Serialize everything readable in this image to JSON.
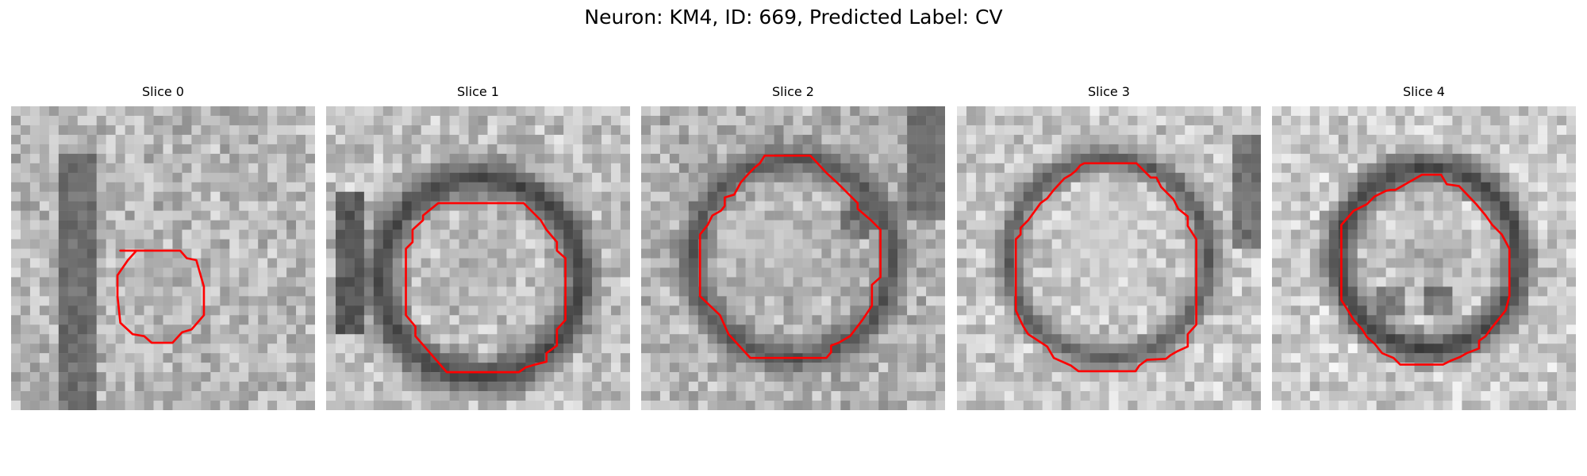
{
  "figure": {
    "title": "Neuron: KM4, ID: 669, Predicted Label: CV"
  },
  "panels": [
    {
      "title": "Slice 0"
    },
    {
      "title": "Slice 1"
    },
    {
      "title": "Slice 2"
    },
    {
      "title": "Slice 3"
    },
    {
      "title": "Slice 4"
    }
  ],
  "colors": {
    "contour": "#ff0000",
    "background": "#ffffff"
  }
}
